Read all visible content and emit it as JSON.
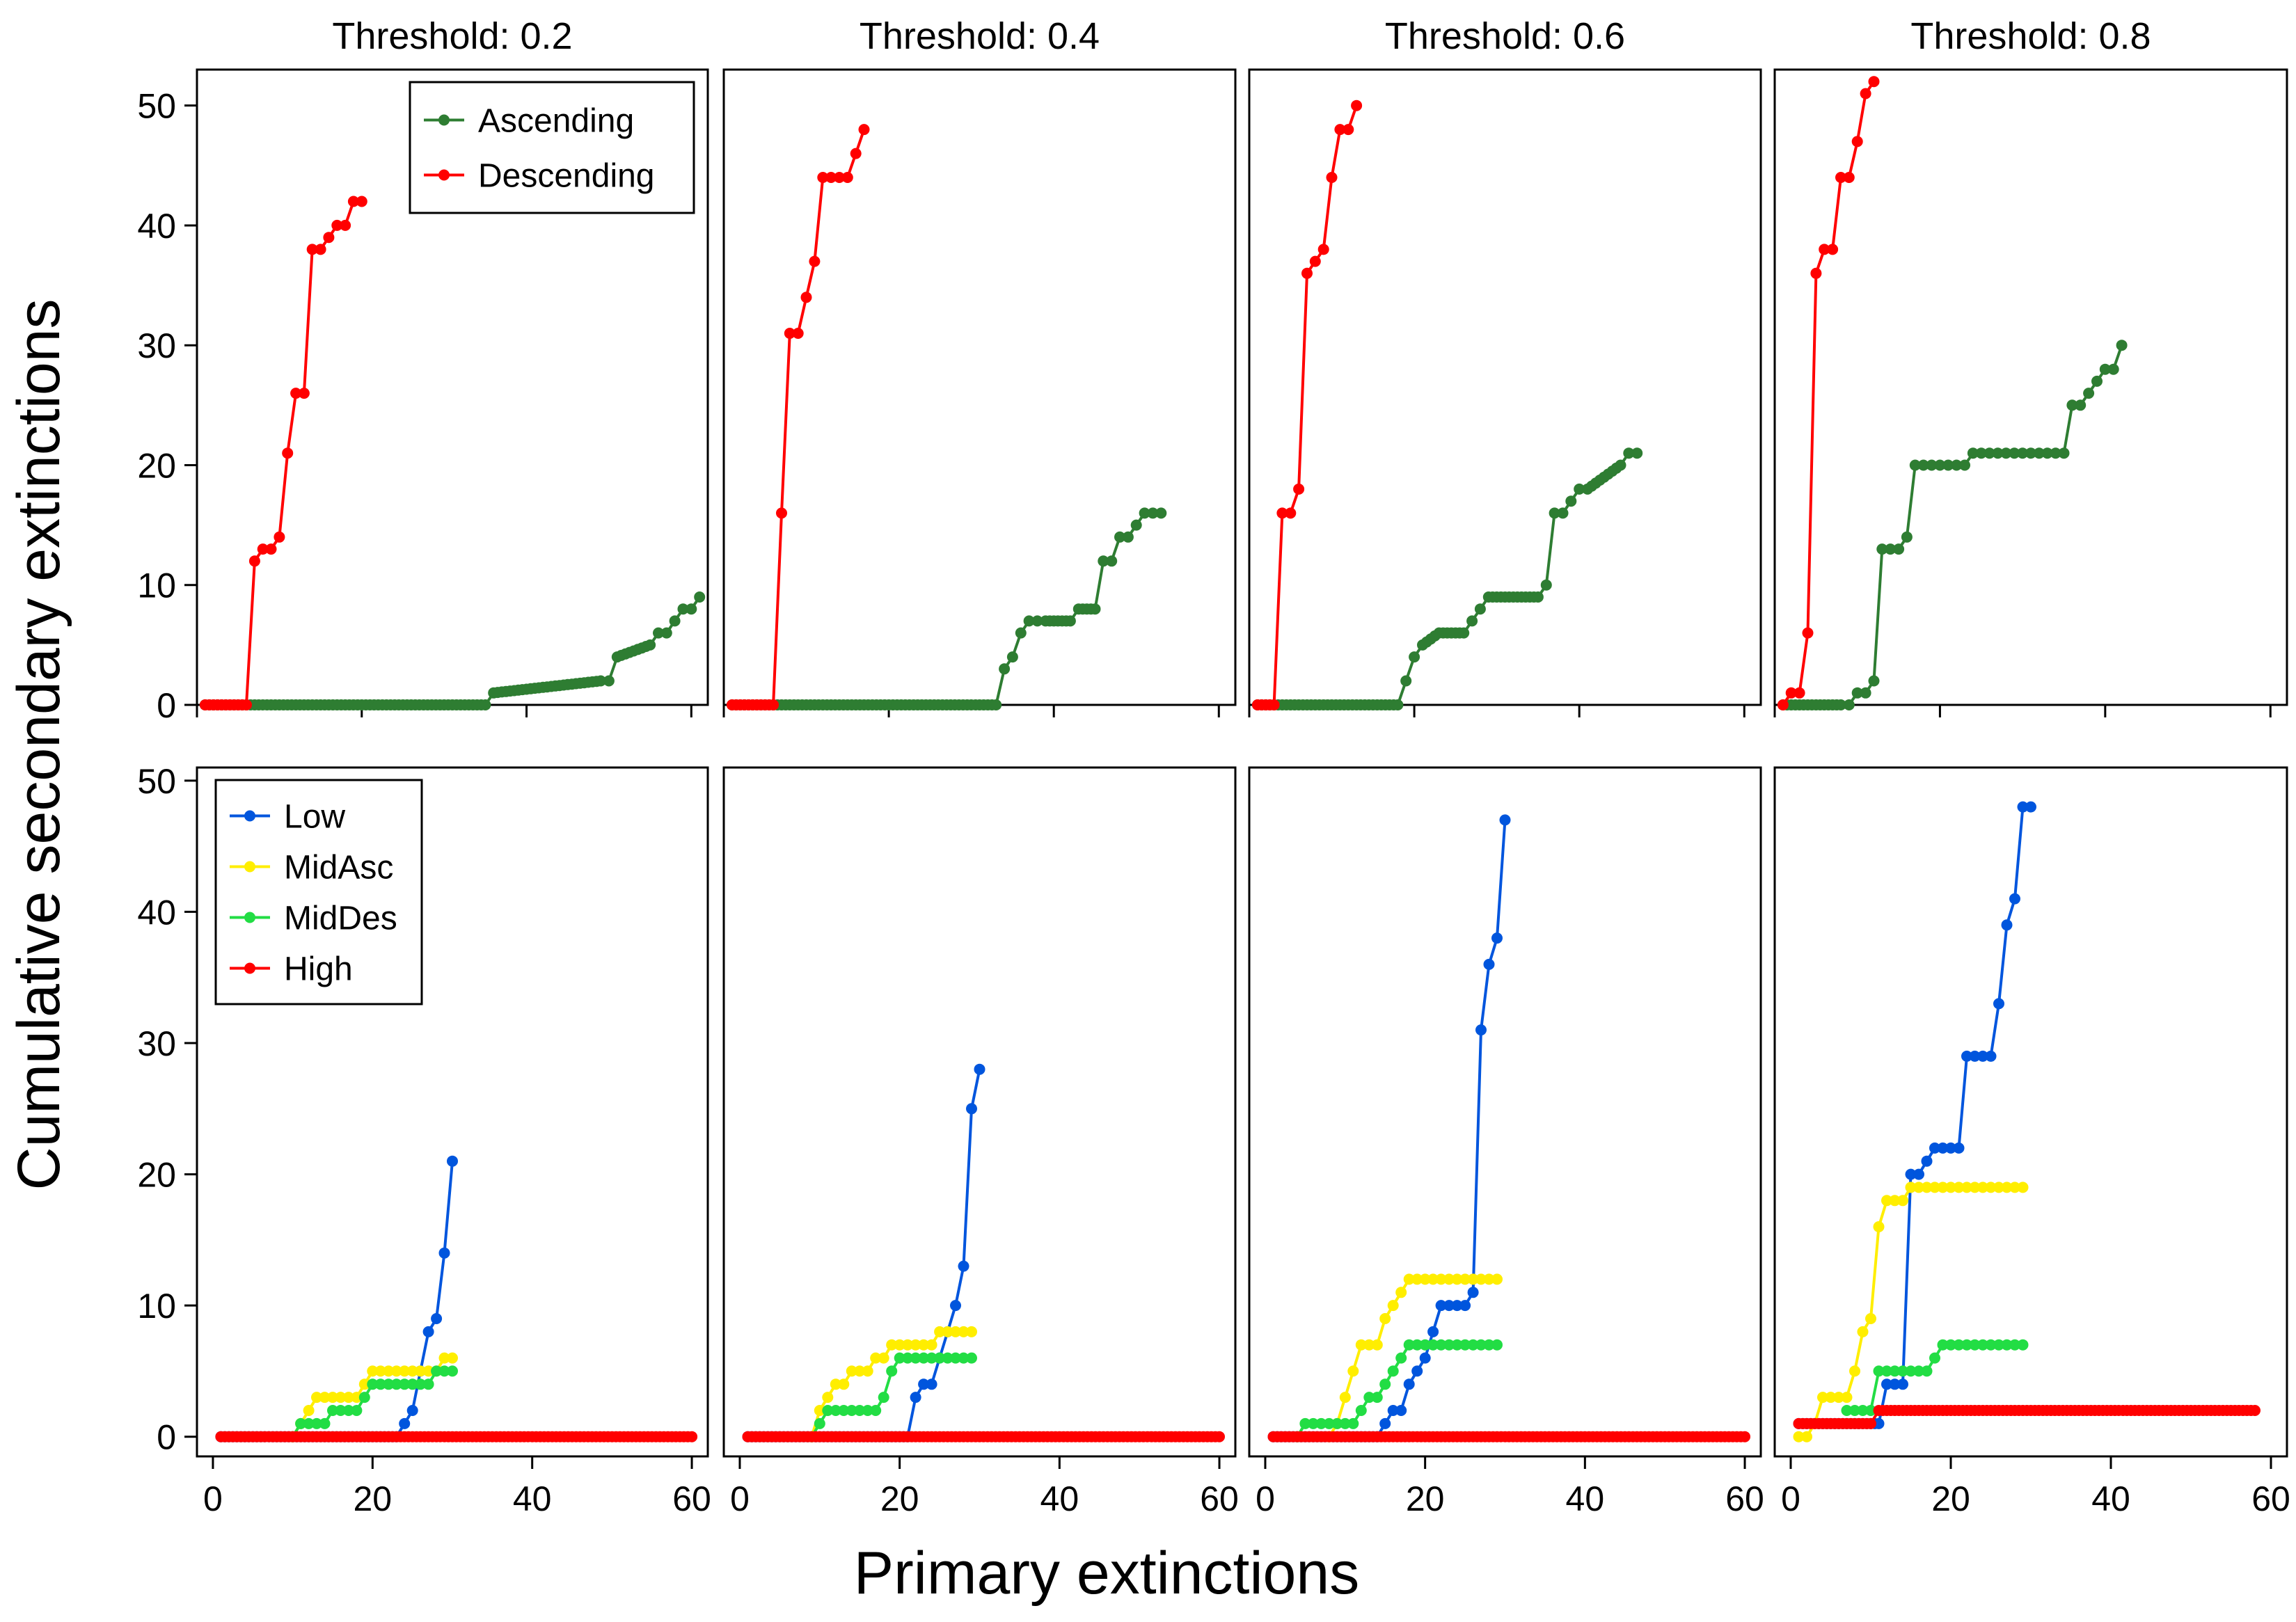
{
  "figure": {
    "xlabel": "Primary extinctions",
    "ylabel": "Cumulative secondary extinctions"
  },
  "chart_data": [
    {
      "type": "line",
      "title": "Threshold: 0.2",
      "row": "top",
      "xlim": [
        0,
        62
      ],
      "ylim": [
        0,
        53
      ],
      "xticks": [
        0,
        20,
        40,
        60
      ],
      "yticks": [
        0,
        10,
        20,
        30,
        40,
        50
      ],
      "legend": "top-right",
      "series": [
        {
          "name": "Ascending",
          "color": "#2e7d32",
          "x": [
            1,
            5,
            35,
            36,
            49,
            50,
            51,
            55,
            56,
            57,
            58,
            59,
            60,
            61
          ],
          "y": [
            0,
            0,
            0,
            1,
            2,
            2,
            4,
            5,
            6,
            6,
            7,
            8,
            8,
            9
          ]
        },
        {
          "name": "Descending",
          "color": "#ff0000",
          "x": [
            1,
            6,
            7,
            8,
            9,
            10,
            11,
            12,
            13,
            14,
            15,
            16,
            17,
            18,
            19,
            20
          ],
          "y": [
            0,
            0,
            12,
            13,
            13,
            14,
            21,
            26,
            26,
            38,
            38,
            39,
            40,
            40,
            42,
            42
          ]
        }
      ]
    },
    {
      "type": "line",
      "title": "Threshold: 0.4",
      "row": "top",
      "xlim": [
        0,
        62
      ],
      "ylim": [
        0,
        53
      ],
      "xticks": [
        0,
        20,
        40,
        60
      ],
      "yticks": [
        0,
        10,
        20,
        30,
        40,
        50
      ],
      "series": [
        {
          "name": "Ascending",
          "color": "#2e7d32",
          "x": [
            1,
            33,
            34,
            35,
            36,
            37,
            38,
            39,
            42,
            43,
            45,
            46,
            47,
            48,
            49,
            50,
            51,
            52,
            53
          ],
          "y": [
            0,
            0,
            3,
            4,
            6,
            7,
            7,
            7,
            7,
            8,
            8,
            12,
            12,
            14,
            14,
            15,
            16,
            16,
            16
          ]
        },
        {
          "name": "Descending",
          "color": "#ff0000",
          "x": [
            1,
            6,
            7,
            8,
            9,
            10,
            11,
            12,
            13,
            14,
            15,
            16,
            17
          ],
          "y": [
            0,
            0,
            16,
            31,
            31,
            34,
            37,
            44,
            44,
            44,
            44,
            46,
            48
          ]
        }
      ]
    },
    {
      "type": "line",
      "title": "Threshold: 0.6",
      "row": "top",
      "xlim": [
        0,
        62
      ],
      "ylim": [
        0,
        53
      ],
      "xticks": [
        0,
        20,
        40,
        60
      ],
      "yticks": [
        0,
        10,
        20,
        30,
        40,
        50
      ],
      "series": [
        {
          "name": "Ascending",
          "color": "#2e7d32",
          "x": [
            1,
            18,
            19,
            20,
            21,
            23,
            26,
            27,
            28,
            29,
            35,
            36,
            37,
            38,
            39,
            40,
            41,
            45,
            46,
            47
          ],
          "y": [
            0,
            0,
            2,
            4,
            5,
            6,
            6,
            7,
            8,
            9,
            9,
            10,
            16,
            16,
            17,
            18,
            18,
            20,
            21,
            21
          ]
        },
        {
          "name": "Descending",
          "color": "#ff0000",
          "x": [
            1,
            3,
            4,
            5,
            6,
            7,
            8,
            9,
            10,
            11,
            12,
            13
          ],
          "y": [
            0,
            0,
            16,
            16,
            18,
            36,
            37,
            38,
            44,
            48,
            48,
            50
          ]
        }
      ]
    },
    {
      "type": "line",
      "title": "Threshold: 0.8",
      "row": "top",
      "xlim": [
        0,
        62
      ],
      "ylim": [
        0,
        53
      ],
      "xticks": [
        0,
        20,
        40,
        60
      ],
      "yticks": [
        0,
        10,
        20,
        30,
        40,
        50
      ],
      "series": [
        {
          "name": "Ascending",
          "color": "#2e7d32",
          "x": [
            1,
            8,
            9,
            10,
            11,
            12,
            13,
            14,
            15,
            16,
            17,
            18,
            19,
            20,
            21,
            22,
            23,
            24,
            25,
            26,
            27,
            28,
            29,
            30,
            31,
            32,
            33,
            34,
            35,
            36,
            37,
            38,
            39,
            40,
            41,
            42
          ],
          "y": [
            0,
            0,
            0,
            1,
            1,
            2,
            13,
            13,
            13,
            14,
            20,
            20,
            20,
            20,
            20,
            20,
            20,
            21,
            21,
            21,
            21,
            21,
            21,
            21,
            21,
            21,
            21,
            21,
            21,
            25,
            25,
            26,
            27,
            28,
            28,
            30
          ]
        },
        {
          "name": "Descending",
          "color": "#ff0000",
          "x": [
            1,
            2,
            3,
            4,
            5,
            6,
            7,
            8,
            9,
            10,
            11,
            12
          ],
          "y": [
            0,
            1,
            1,
            6,
            36,
            38,
            38,
            44,
            44,
            47,
            51,
            52
          ]
        }
      ]
    },
    {
      "type": "line",
      "row": "bottom",
      "xlim": [
        -2,
        62
      ],
      "ylim": [
        -1.5,
        51
      ],
      "xticks": [
        0,
        20,
        40,
        60
      ],
      "yticks": [
        0,
        10,
        20,
        30,
        40,
        50
      ],
      "legend": "top-left",
      "series": [
        {
          "name": "Low",
          "color": "#0055dd",
          "x": [
            1,
            23,
            24,
            25,
            26,
            27,
            28,
            29,
            30
          ],
          "y": [
            0,
            0,
            1,
            2,
            5,
            8,
            9,
            14,
            21
          ]
        },
        {
          "name": "MidAsc",
          "color": "#ffee00",
          "x": [
            10,
            11,
            12,
            13,
            14,
            15,
            16,
            17,
            18,
            19,
            20,
            21,
            22,
            23,
            24,
            25,
            26,
            27,
            28,
            29,
            30
          ],
          "y": [
            0,
            1,
            2,
            3,
            3,
            3,
            3,
            3,
            3,
            4,
            5,
            5,
            5,
            5,
            5,
            5,
            5,
            5,
            5,
            6,
            6
          ]
        },
        {
          "name": "MidDes",
          "color": "#22dd44",
          "x": [
            10,
            11,
            12,
            13,
            14,
            15,
            16,
            17,
            18,
            19,
            20,
            21,
            22,
            23,
            24,
            25,
            26,
            27,
            28,
            29,
            30
          ],
          "y": [
            0,
            1,
            1,
            1,
            1,
            2,
            2,
            2,
            2,
            3,
            4,
            4,
            4,
            4,
            4,
            4,
            4,
            4,
            5,
            5,
            5
          ]
        },
        {
          "name": "High",
          "color": "#ff0000",
          "x": [
            1,
            60
          ],
          "y": [
            0,
            0
          ]
        }
      ]
    },
    {
      "type": "line",
      "row": "bottom",
      "xlim": [
        -2,
        62
      ],
      "ylim": [
        -1.5,
        51
      ],
      "xticks": [
        0,
        20,
        40,
        60
      ],
      "yticks": [
        0,
        10,
        20,
        30,
        40,
        50
      ],
      "series": [
        {
          "name": "Low",
          "color": "#0055dd",
          "x": [
            1,
            21,
            22,
            23,
            24,
            25,
            26,
            27,
            28,
            29,
            30
          ],
          "y": [
            0,
            0,
            3,
            4,
            4,
            6,
            8,
            10,
            13,
            25,
            28
          ]
        },
        {
          "name": "MidAsc",
          "color": "#ffee00",
          "x": [
            9,
            10,
            11,
            12,
            13,
            14,
            15,
            16,
            17,
            18,
            19,
            20,
            21,
            22,
            23,
            24,
            25,
            26,
            27,
            28,
            29
          ],
          "y": [
            0,
            2,
            3,
            4,
            4,
            5,
            5,
            5,
            6,
            6,
            7,
            7,
            7,
            7,
            7,
            7,
            8,
            8,
            8,
            8,
            8
          ]
        },
        {
          "name": "MidDes",
          "color": "#22dd44",
          "x": [
            9,
            10,
            11,
            12,
            13,
            14,
            15,
            16,
            17,
            18,
            19,
            20,
            21,
            22,
            23,
            24,
            25,
            26,
            27,
            28,
            29
          ],
          "y": [
            0,
            1,
            2,
            2,
            2,
            2,
            2,
            2,
            2,
            3,
            5,
            6,
            6,
            6,
            6,
            6,
            6,
            6,
            6,
            6,
            6
          ]
        },
        {
          "name": "High",
          "color": "#ff0000",
          "x": [
            1,
            60
          ],
          "y": [
            0,
            0
          ]
        }
      ]
    },
    {
      "type": "line",
      "row": "bottom",
      "xlim": [
        -2,
        62
      ],
      "ylim": [
        -1.5,
        51
      ],
      "xticks": [
        0,
        20,
        40,
        60
      ],
      "yticks": [
        0,
        10,
        20,
        30,
        40,
        50
      ],
      "series": [
        {
          "name": "Low",
          "color": "#0055dd",
          "x": [
            1,
            14,
            15,
            16,
            17,
            18,
            19,
            20,
            21,
            22,
            23,
            24,
            25,
            26,
            27,
            28,
            29,
            30
          ],
          "y": [
            0,
            0,
            1,
            2,
            2,
            4,
            5,
            6,
            8,
            10,
            10,
            10,
            10,
            11,
            31,
            36,
            38,
            47
          ]
        },
        {
          "name": "MidAsc",
          "color": "#ffee00",
          "x": [
            8,
            9,
            10,
            11,
            12,
            13,
            14,
            15,
            16,
            17,
            18,
            19,
            20,
            21,
            22,
            23,
            24,
            25,
            26,
            27,
            28,
            29
          ],
          "y": [
            0,
            1,
            3,
            5,
            7,
            7,
            7,
            9,
            10,
            11,
            12,
            12,
            12,
            12,
            12,
            12,
            12,
            12,
            12,
            12,
            12,
            12
          ]
        },
        {
          "name": "MidDes",
          "color": "#22dd44",
          "x": [
            4,
            5,
            6,
            7,
            8,
            9,
            10,
            11,
            12,
            13,
            14,
            15,
            16,
            17,
            18,
            19,
            20,
            21,
            22,
            23,
            24,
            25,
            26,
            27,
            28,
            29
          ],
          "y": [
            0,
            1,
            1,
            1,
            1,
            1,
            1,
            1,
            2,
            3,
            3,
            4,
            5,
            6,
            7,
            7,
            7,
            7,
            7,
            7,
            7,
            7,
            7,
            7,
            7,
            7
          ]
        },
        {
          "name": "High",
          "color": "#ff0000",
          "x": [
            1,
            60
          ],
          "y": [
            0,
            0
          ]
        }
      ]
    },
    {
      "type": "line",
      "row": "bottom",
      "xlim": [
        -2,
        62
      ],
      "ylim": [
        -1.5,
        51
      ],
      "xticks": [
        0,
        20,
        40,
        60
      ],
      "yticks": [
        0,
        10,
        20,
        30,
        40,
        50
      ],
      "series": [
        {
          "name": "Low",
          "color": "#0055dd",
          "x": [
            1,
            11,
            12,
            13,
            14,
            15,
            16,
            17,
            18,
            19,
            20,
            21,
            22,
            23,
            24,
            25,
            26,
            27,
            28,
            29,
            30
          ],
          "y": [
            1,
            1,
            4,
            4,
            4,
            20,
            20,
            21,
            22,
            22,
            22,
            22,
            29,
            29,
            29,
            29,
            33,
            39,
            41,
            48,
            48
          ]
        },
        {
          "name": "MidAsc",
          "color": "#ffee00",
          "x": [
            1,
            2,
            3,
            4,
            5,
            6,
            7,
            8,
            9,
            10,
            11,
            12,
            13,
            14,
            15,
            16,
            17,
            18,
            19,
            20,
            21,
            22,
            23,
            24,
            25,
            26,
            27,
            28,
            29
          ],
          "y": [
            0,
            0,
            1,
            3,
            3,
            3,
            3,
            5,
            8,
            9,
            16,
            18,
            18,
            18,
            19,
            19,
            19,
            19,
            19,
            19,
            19,
            19,
            19,
            19,
            19,
            19,
            19,
            19,
            19
          ]
        },
        {
          "name": "MidDes",
          "color": "#22dd44",
          "x": [
            7,
            8,
            9,
            10,
            11,
            12,
            13,
            14,
            15,
            16,
            17,
            18,
            19,
            20,
            21,
            22,
            23,
            24,
            25,
            26,
            27,
            28,
            29
          ],
          "y": [
            2,
            2,
            2,
            2,
            5,
            5,
            5,
            5,
            5,
            5,
            5,
            6,
            7,
            7,
            7,
            7,
            7,
            7,
            7,
            7,
            7,
            7,
            7
          ]
        },
        {
          "name": "High",
          "color": "#ff0000",
          "x": [
            1,
            10,
            11,
            58
          ],
          "y": [
            1,
            1,
            2,
            2
          ]
        }
      ]
    }
  ]
}
